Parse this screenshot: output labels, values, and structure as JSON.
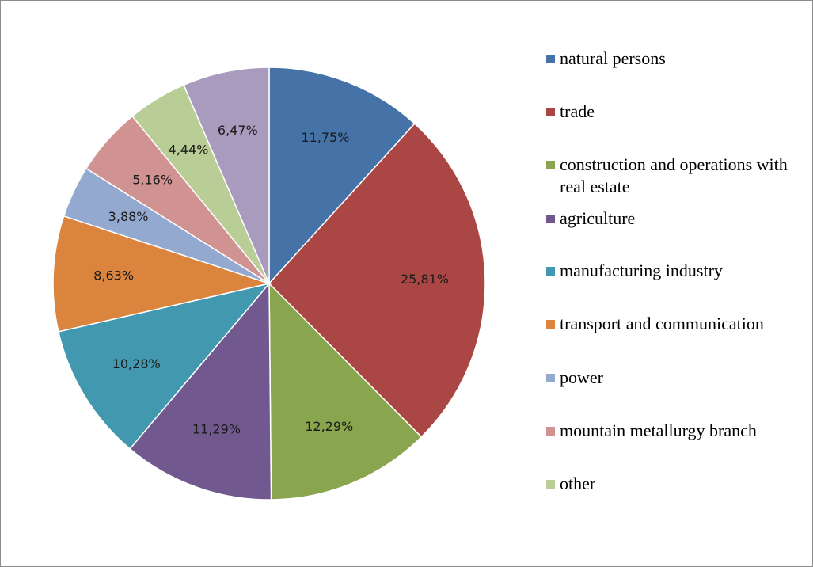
{
  "chart_data": {
    "type": "pie",
    "title": "",
    "legend_position": "right",
    "slices": [
      {
        "label": "natural persons",
        "value": 11.75,
        "display": "11,75%",
        "color": "#4572A7"
      },
      {
        "label": "trade",
        "value": 25.81,
        "display": "25,81%",
        "color": "#AA4643"
      },
      {
        "label": "construction and operations with real estate",
        "value": 12.29,
        "display": "12,29%",
        "color": "#89A54E"
      },
      {
        "label": "agriculture",
        "value": 11.29,
        "display": "11,29%",
        "color": "#71588F"
      },
      {
        "label": "manufacturing industry",
        "value": 10.28,
        "display": "10,28%",
        "color": "#4198AF"
      },
      {
        "label": "transport and communication",
        "value": 8.63,
        "display": "8,63%",
        "color": "#DB843D"
      },
      {
        "label": "power",
        "value": 3.88,
        "display": "3,88%",
        "color": "#93A9CF"
      },
      {
        "label": "mountain metallurgy branch",
        "value": 5.16,
        "display": "5,16%",
        "color": "#D19392"
      },
      {
        "label": "other",
        "value": 4.44,
        "display": "4,44%",
        "color": "#B9CD96"
      },
      {
        "label": "",
        "value": 6.47,
        "display": "6,47%",
        "color": "#A99BBD"
      }
    ]
  }
}
